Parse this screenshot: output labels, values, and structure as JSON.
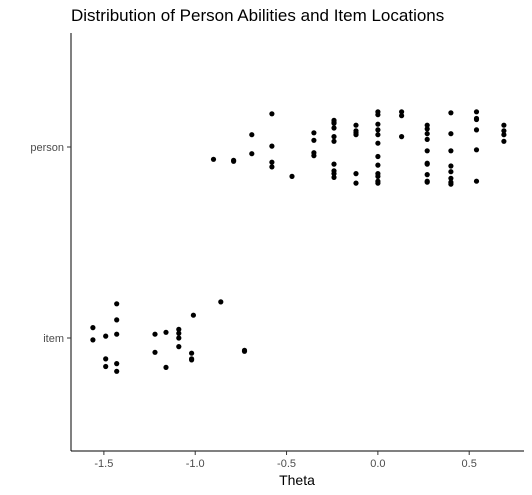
{
  "chart_data": {
    "type": "scatter",
    "title": "Distribution of Person Abilities and Item Locations",
    "xlabel": "Theta",
    "ylabel": "",
    "xlim": [
      -1.68,
      0.8
    ],
    "x_ticks": [
      -1.5,
      -1.0,
      -0.5,
      0.0,
      0.5
    ],
    "x_tick_labels": [
      "-1.5",
      "-1.0",
      "-0.5",
      "0.0",
      "0.5"
    ],
    "categories": [
      "item",
      "person"
    ],
    "grid": false,
    "legend": "none",
    "point_color": "#000000",
    "series": [
      {
        "category": "item",
        "points": [
          {
            "x": -1.56,
            "y": 0.11
          },
          {
            "x": -1.56,
            "y": -0.02
          },
          {
            "x": -1.49,
            "y": 0.02
          },
          {
            "x": -1.49,
            "y": -0.22
          },
          {
            "x": -1.49,
            "y": -0.3
          },
          {
            "x": -1.43,
            "y": 0.36
          },
          {
            "x": -1.43,
            "y": 0.19
          },
          {
            "x": -1.43,
            "y": 0.04
          },
          {
            "x": -1.43,
            "y": -0.27
          },
          {
            "x": -1.43,
            "y": -0.35
          },
          {
            "x": -1.22,
            "y": 0.04
          },
          {
            "x": -1.22,
            "y": -0.15
          },
          {
            "x": -1.16,
            "y": 0.06
          },
          {
            "x": -1.16,
            "y": -0.31
          },
          {
            "x": -1.09,
            "y": 0.09
          },
          {
            "x": -1.09,
            "y": 0.05
          },
          {
            "x": -1.09,
            "y": -0.09
          },
          {
            "x": -1.09,
            "y": 0.0
          },
          {
            "x": -1.02,
            "y": -0.16
          },
          {
            "x": -1.02,
            "y": -0.23
          },
          {
            "x": -1.02,
            "y": -0.22
          },
          {
            "x": -1.01,
            "y": 0.24
          },
          {
            "x": -0.86,
            "y": 0.38
          },
          {
            "x": -0.73,
            "y": -0.13
          },
          {
            "x": -0.73,
            "y": -0.14
          }
        ]
      },
      {
        "category": "person",
        "points": [
          {
            "x": -0.9,
            "y": -0.13
          },
          {
            "x": -0.79,
            "y": -0.14
          },
          {
            "x": -0.79,
            "y": -0.15
          },
          {
            "x": -0.69,
            "y": 0.13
          },
          {
            "x": -0.69,
            "y": -0.07
          },
          {
            "x": -0.58,
            "y": 0.35
          },
          {
            "x": -0.58,
            "y": 0.01
          },
          {
            "x": -0.58,
            "y": -0.16
          },
          {
            "x": -0.58,
            "y": -0.21
          },
          {
            "x": -0.47,
            "y": -0.31
          },
          {
            "x": -0.35,
            "y": 0.15
          },
          {
            "x": -0.35,
            "y": 0.07
          },
          {
            "x": -0.35,
            "y": -0.06
          },
          {
            "x": -0.35,
            "y": -0.09
          },
          {
            "x": -0.24,
            "y": 0.28
          },
          {
            "x": -0.24,
            "y": 0.26
          },
          {
            "x": -0.24,
            "y": 0.25
          },
          {
            "x": -0.24,
            "y": 0.2
          },
          {
            "x": -0.24,
            "y": 0.11
          },
          {
            "x": -0.24,
            "y": 0.06
          },
          {
            "x": -0.24,
            "y": -0.18
          },
          {
            "x": -0.24,
            "y": -0.25
          },
          {
            "x": -0.24,
            "y": -0.28
          },
          {
            "x": -0.24,
            "y": -0.32
          },
          {
            "x": -0.12,
            "y": 0.23
          },
          {
            "x": -0.12,
            "y": 0.17
          },
          {
            "x": -0.12,
            "y": 0.15
          },
          {
            "x": -0.12,
            "y": 0.13
          },
          {
            "x": -0.12,
            "y": -0.28
          },
          {
            "x": -0.12,
            "y": -0.38
          },
          {
            "x": 0.0,
            "y": 0.37
          },
          {
            "x": 0.0,
            "y": 0.34
          },
          {
            "x": 0.0,
            "y": 0.24
          },
          {
            "x": 0.0,
            "y": 0.18
          },
          {
            "x": 0.0,
            "y": 0.13
          },
          {
            "x": 0.0,
            "y": 0.04
          },
          {
            "x": 0.0,
            "y": -0.1
          },
          {
            "x": 0.0,
            "y": -0.19
          },
          {
            "x": 0.0,
            "y": -0.28
          },
          {
            "x": 0.0,
            "y": -0.31
          },
          {
            "x": 0.0,
            "y": -0.36
          },
          {
            "x": 0.0,
            "y": -0.38
          },
          {
            "x": 0.13,
            "y": 0.37
          },
          {
            "x": 0.13,
            "y": 0.33
          },
          {
            "x": 0.13,
            "y": 0.11
          },
          {
            "x": 0.27,
            "y": 0.23
          },
          {
            "x": 0.27,
            "y": 0.19
          },
          {
            "x": 0.27,
            "y": 0.14
          },
          {
            "x": 0.27,
            "y": 0.08
          },
          {
            "x": 0.27,
            "y": -0.04
          },
          {
            "x": 0.27,
            "y": -0.17
          },
          {
            "x": 0.27,
            "y": -0.18
          },
          {
            "x": 0.27,
            "y": -0.29
          },
          {
            "x": 0.27,
            "y": -0.36
          },
          {
            "x": 0.27,
            "y": -0.37
          },
          {
            "x": 0.4,
            "y": 0.36
          },
          {
            "x": 0.4,
            "y": 0.14
          },
          {
            "x": 0.4,
            "y": -0.04
          },
          {
            "x": 0.4,
            "y": -0.2
          },
          {
            "x": 0.4,
            "y": -0.26
          },
          {
            "x": 0.4,
            "y": -0.33
          },
          {
            "x": 0.4,
            "y": -0.37
          },
          {
            "x": 0.4,
            "y": -0.39
          },
          {
            "x": 0.54,
            "y": 0.37
          },
          {
            "x": 0.54,
            "y": 0.3
          },
          {
            "x": 0.54,
            "y": 0.29
          },
          {
            "x": 0.54,
            "y": 0.18
          },
          {
            "x": 0.54,
            "y": -0.03
          },
          {
            "x": 0.54,
            "y": -0.36
          },
          {
            "x": 0.69,
            "y": 0.23
          },
          {
            "x": 0.69,
            "y": 0.17
          },
          {
            "x": 0.69,
            "y": 0.13
          },
          {
            "x": 0.69,
            "y": 0.06
          }
        ]
      }
    ]
  }
}
